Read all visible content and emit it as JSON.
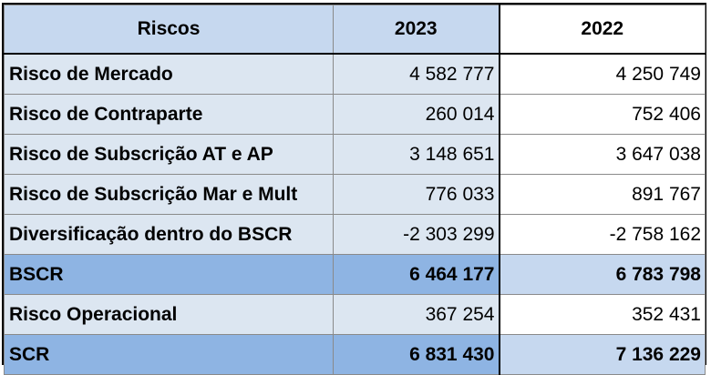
{
  "table": {
    "headers": [
      "Riscos",
      "2023",
      "2022"
    ],
    "rows": [
      {
        "label": "Risco de Mercado",
        "v2023": "4 582 777",
        "v2022": "4 250 749"
      },
      {
        "label": "Risco de Contraparte",
        "v2023": "260 014",
        "v2022": "752 406"
      },
      {
        "label": "Risco de Subscrição AT e AP",
        "v2023": "3 148 651",
        "v2022": "3 647 038"
      },
      {
        "label": "Risco de Subscrição Mar e Mult",
        "v2023": "776 033",
        "v2022": "891 767"
      },
      {
        "label": "Diversificação dentro do BSCR",
        "v2023": "-2 303 299",
        "v2022": "-2 758 162"
      },
      {
        "label": "BSCR",
        "v2023": "6 464 177",
        "v2022": "6 783 798"
      },
      {
        "label": "Risco Operacional",
        "v2023": "367 254",
        "v2022": "352 431"
      },
      {
        "label": "SCR",
        "v2023": "6 831 430",
        "v2022": "7 136 229"
      }
    ]
  },
  "colors": {
    "header_blue": "#c6d8ef",
    "row_light_blue": "#dce6f1",
    "total_row_blue": "#8eb4e3",
    "border": "#000000"
  }
}
